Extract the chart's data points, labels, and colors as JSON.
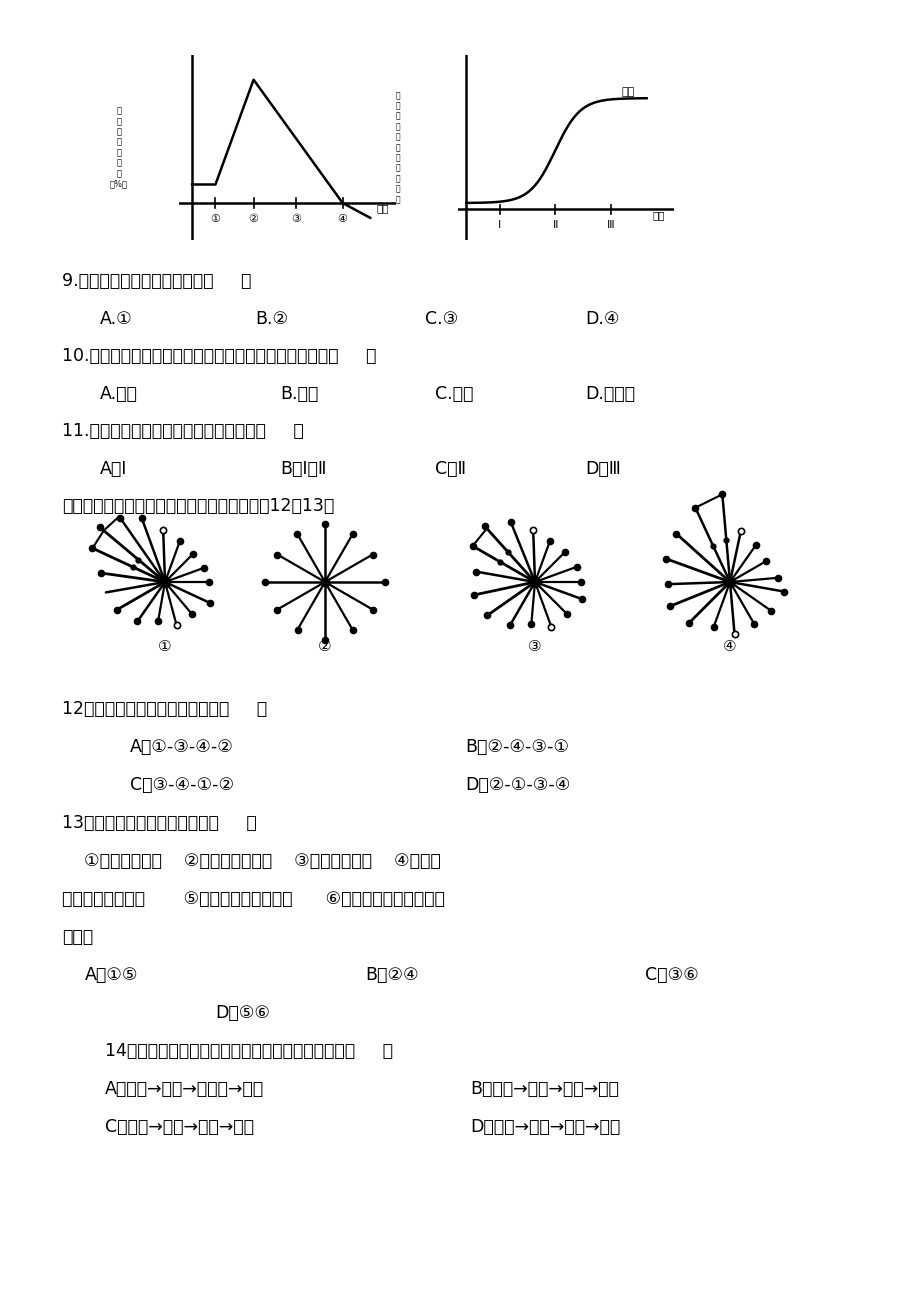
{
  "background_color": "#ffffff",
  "page_width": 9.2,
  "page_height": 13.02,
  "text_color": "#000000",
  "q9": "9.该国人口达到顶峰的时期为（     ）",
  "q9_opts": [
    "A.①",
    "B.②",
    "C.③",
    "D.④"
  ],
  "q10": "10.下列各国中，人口发展情况与左图图示类型一致的是（     ）",
  "q10_opts": [
    "A.埃及",
    "B.中国",
    "C.德国",
    "D.新加坡"
  ],
  "q11": "11.当前，该国城市化进程所处的阶段是（     ）",
  "q11_opts": [
    "A．Ⅰ",
    "B．Ⅰ和Ⅱ",
    "C．Ⅱ",
    "D．Ⅲ"
  ],
  "intro": "下图为某区域城市发展过程示意图，读图回答12～13题",
  "q12": "12．该区域城市发展过程依次是（     ）",
  "q12_opts": [
    "A．①-③-④-②",
    "B．②-④-③-①",
    "C．③-④-①-②",
    "D．②-①-③-④"
  ],
  "q13": "13．该区域城市发展必然导致（     ）",
  "q13_line1": "    ①城市环境恶化    ②植被覆盖率减少    ③地下水位上升    ④地表径",
  "q13_line2": "流量季节变化增大       ⑤城市化水平不断提高      ⑥城市与郊区之间形成热",
  "q13_line3": "力环流",
  "q13_opts_row1": [
    "A．①⑤",
    "B．②④",
    "C．③⑥"
  ],
  "q13_opt_row2": "D．⑤⑥",
  "q14": "14．下列城市的服务范围由大到小排序，正确的是（     ）",
  "q14_opts": [
    "A．北京→天津→石家庄→成都",
    "B．上海→杭州→重庆→深圳",
    "C．上海→成都→重庆→双流",
    "D．北京→成都→双流→华阳"
  ],
  "chart1_ylabel": "人\n口\n自\n然\n增\n长\n率\n（%）",
  "chart1_xlabel": "时间",
  "chart1_xticks": [
    "①",
    "②",
    "③",
    "④"
  ],
  "chart2_ylabel": "城\n镇\n人\n口\n占\n总\n人\n口\n的\n比\n重",
  "chart2_xlabel": "时期",
  "chart2_xticks": [
    "Ⅰ",
    "Ⅱ",
    "Ⅲ"
  ],
  "chart2_label": "人口"
}
